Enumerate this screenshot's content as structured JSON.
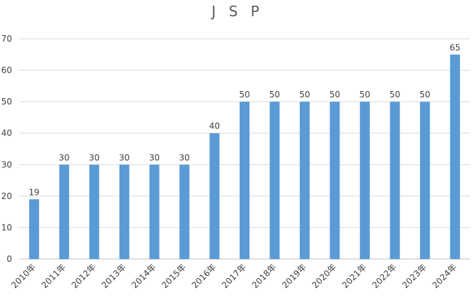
{
  "chart_data": {
    "type": "bar",
    "title": "J S P",
    "categories": [
      "2010年",
      "2011年",
      "2012年",
      "2013年",
      "2014年",
      "2015年",
      "2016年",
      "2017年",
      "2018年",
      "2019年",
      "2020年",
      "2021年",
      "2022年",
      "2023年",
      "2024年"
    ],
    "series": [
      {
        "values": [
          19,
          30,
          30,
          30,
          30,
          30,
          40,
          50,
          50,
          50,
          50,
          50,
          50,
          50,
          65
        ]
      }
    ],
    "ylim": [
      0,
      70
    ],
    "yticks": [
      0,
      10,
      20,
      30,
      40,
      50,
      60,
      70
    ],
    "xlabel": "",
    "ylabel": "",
    "grid": true,
    "data_labels": true,
    "legend": "none",
    "colors": {
      "bar": "#5b9bd5",
      "grid": "#d9d9d9",
      "text": "#404040",
      "title": "#595959"
    }
  }
}
